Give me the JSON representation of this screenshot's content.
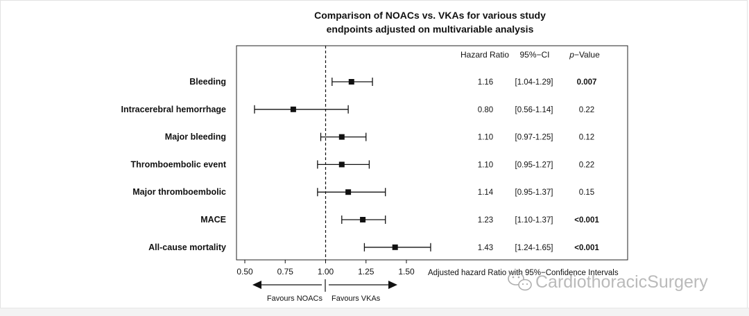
{
  "chart_data": {
    "type": "forest",
    "title_lines": [
      "Comparison of NOACs vs. VKAs for various study",
      "endpoints adjusted on multivariable analysis"
    ],
    "column_headers": {
      "hr": "Hazard Ratio",
      "ci": "95%−CI",
      "p_prefix": "p",
      "p_suffix": "−Value"
    },
    "rows": [
      {
        "label": "Bleeding",
        "hr": 1.16,
        "lo": 1.04,
        "hi": 1.29,
        "hr_text": "1.16",
        "ci_text": "[1.04-1.29]",
        "p_text": "0.007",
        "p_bold": true
      },
      {
        "label": "Intracerebral hemorrhage",
        "hr": 0.8,
        "lo": 0.56,
        "hi": 1.14,
        "hr_text": "0.80",
        "ci_text": "[0.56-1.14]",
        "p_text": "0.22",
        "p_bold": false
      },
      {
        "label": "Major bleeding",
        "hr": 1.1,
        "lo": 0.97,
        "hi": 1.25,
        "hr_text": "1.10",
        "ci_text": "[0.97-1.25]",
        "p_text": "0.12",
        "p_bold": false
      },
      {
        "label": "Thromboembolic event",
        "hr": 1.1,
        "lo": 0.95,
        "hi": 1.27,
        "hr_text": "1.10",
        "ci_text": "[0.95-1.27]",
        "p_text": "0.22",
        "p_bold": false
      },
      {
        "label": "Major thromboembolic",
        "hr": 1.14,
        "lo": 0.95,
        "hi": 1.37,
        "hr_text": "1.14",
        "ci_text": "[0.95-1.37]",
        "p_text": "0.15",
        "p_bold": false
      },
      {
        "label": "MACE",
        "hr": 1.23,
        "lo": 1.1,
        "hi": 1.37,
        "hr_text": "1.23",
        "ci_text": "[1.10-1.37]",
        "p_text": "<0.001",
        "p_bold": true
      },
      {
        "label": "All-cause mortality",
        "hr": 1.43,
        "lo": 1.24,
        "hi": 1.65,
        "hr_text": "1.43",
        "ci_text": "[1.24-1.65]",
        "p_text": "<0.001",
        "p_bold": true
      }
    ],
    "x_ticks": [
      0.5,
      0.75,
      1.0,
      1.25,
      1.5
    ],
    "x_tick_labels": [
      "0.50",
      "0.75",
      "1.00",
      "1.25",
      "1.50"
    ],
    "xlim": [
      0.45,
      1.75
    ],
    "reference_line": 1.0,
    "xlabel": "Adjusted hazard Ratio with 95%−Confidence Intervals",
    "left_arrow_label": "Favours NOACs",
    "right_arrow_label": "Favours VKAs",
    "grid": false
  },
  "watermark": {
    "text": "CardiothoracicSurgery",
    "icon": "wechat-icon"
  },
  "colors": {
    "ink": "#111111",
    "watermark": "#9a9a9a"
  }
}
